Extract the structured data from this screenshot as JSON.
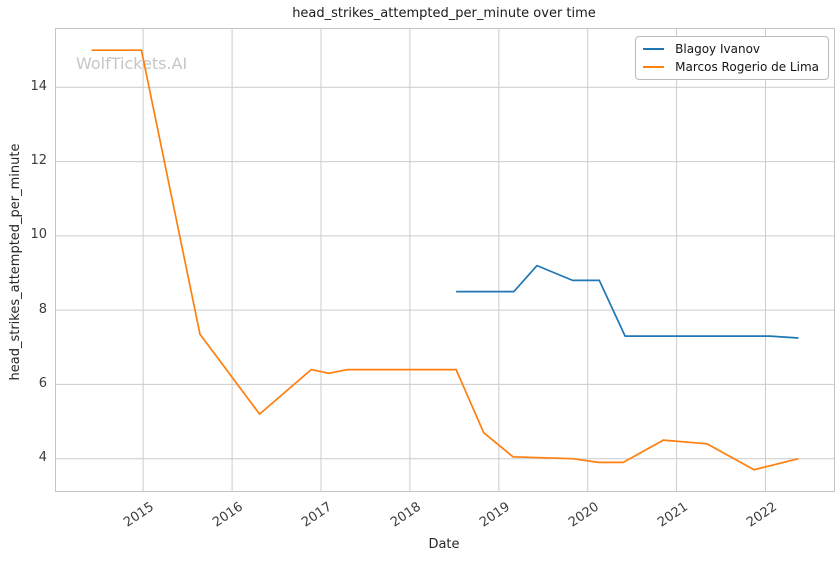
{
  "chart_data": {
    "type": "line",
    "title": "head_strikes_attempted_per_minute over time",
    "xlabel": "Date",
    "ylabel": "head_strikes_attempted_per_minute",
    "watermark": "WolfTickets.AI",
    "grid": true,
    "legend_position": "upper right",
    "xlim": [
      2014.02,
      2022.77
    ],
    "ylim": [
      3.13,
      15.57
    ],
    "x_ticks": [
      2015,
      2016,
      2017,
      2018,
      2019,
      2020,
      2021,
      2022
    ],
    "y_ticks": [
      4,
      6,
      8,
      10,
      12,
      14
    ],
    "grid_color": "#cccccc",
    "series": [
      {
        "name": "Blagoy Ivanov",
        "color": "#1f77b4",
        "points": [
          [
            2018.52,
            8.5
          ],
          [
            2019.17,
            8.5
          ],
          [
            2019.43,
            9.2
          ],
          [
            2019.83,
            8.8
          ],
          [
            2020.13,
            8.8
          ],
          [
            2020.42,
            7.3
          ],
          [
            2022.05,
            7.3
          ],
          [
            2022.37,
            7.25
          ]
        ]
      },
      {
        "name": "Marcos Rogerio de Lima",
        "color": "#ff7f0e",
        "points": [
          [
            2014.42,
            15.0
          ],
          [
            2014.98,
            15.0
          ],
          [
            2015.64,
            7.35
          ],
          [
            2016.31,
            5.2
          ],
          [
            2016.89,
            6.4
          ],
          [
            2017.09,
            6.3
          ],
          [
            2017.3,
            6.4
          ],
          [
            2018.52,
            6.4
          ],
          [
            2018.83,
            4.7
          ],
          [
            2019.16,
            4.05
          ],
          [
            2019.83,
            4.0
          ],
          [
            2020.12,
            3.9
          ],
          [
            2020.4,
            3.9
          ],
          [
            2020.85,
            4.5
          ],
          [
            2021.34,
            4.4
          ],
          [
            2021.87,
            3.7
          ],
          [
            2022.37,
            4.0
          ]
        ]
      }
    ]
  }
}
